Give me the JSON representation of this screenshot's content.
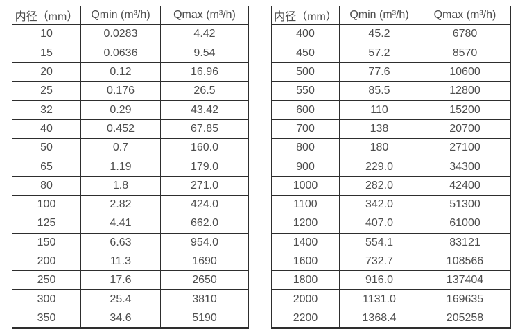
{
  "page": {
    "background_color": "#ffffff",
    "text_color": "#4d4d4d",
    "border_color": "#2e2e2e"
  },
  "tables": [
    {
      "name": "flow-table-small-diameters",
      "headers": [
        "内径（mm）",
        "Qmin (m³/h)",
        "Qmax (m³/h)"
      ],
      "rows": [
        [
          "10",
          "0.0283",
          "4.42"
        ],
        [
          "15",
          "0.0636",
          "9.54"
        ],
        [
          "20",
          "0.12",
          "16.96"
        ],
        [
          "25",
          "0.176",
          "26.5"
        ],
        [
          "32",
          "0.29",
          "43.42"
        ],
        [
          "40",
          "0.452",
          "67.85"
        ],
        [
          "50",
          "0.7",
          "160.0"
        ],
        [
          "65",
          "1.19",
          "179.0"
        ],
        [
          "80",
          "1.8",
          "271.0"
        ],
        [
          "100",
          "2.82",
          "424.0"
        ],
        [
          "125",
          "4.41",
          "662.0"
        ],
        [
          "150",
          "6.63",
          "954.0"
        ],
        [
          "200",
          "11.3",
          "1690"
        ],
        [
          "250",
          "17.6",
          "2650"
        ],
        [
          "300",
          "25.4",
          "3810"
        ],
        [
          "350",
          "34.6",
          "5190"
        ]
      ]
    },
    {
      "name": "flow-table-large-diameters",
      "headers": [
        "内径（mm）",
        "Qmin (m³/h)",
        "Qmax (m³/h)"
      ],
      "rows": [
        [
          "400",
          "45.2",
          "6780"
        ],
        [
          "450",
          "57.2",
          "8570"
        ],
        [
          "500",
          "77.6",
          "10600"
        ],
        [
          "550",
          "85.5",
          "12800"
        ],
        [
          "600",
          "110",
          "15200"
        ],
        [
          "700",
          "138",
          "20700"
        ],
        [
          "800",
          "180",
          "27100"
        ],
        [
          "900",
          "229.0",
          "34300"
        ],
        [
          "1000",
          "282.0",
          "42400"
        ],
        [
          "1100",
          "342.0",
          "51300"
        ],
        [
          "1200",
          "407.0",
          "61000"
        ],
        [
          "1400",
          "554.1",
          "83121"
        ],
        [
          "1600",
          "732.7",
          "108566"
        ],
        [
          "1800",
          "916.0",
          "137404"
        ],
        [
          "2000",
          "1131.0",
          "169635"
        ],
        [
          "2200",
          "1368.4",
          "205258"
        ]
      ]
    }
  ]
}
